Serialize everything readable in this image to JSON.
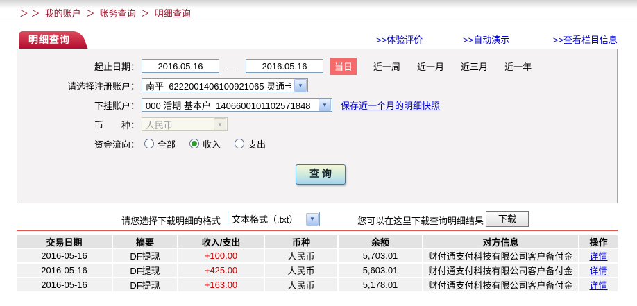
{
  "breadcrumb": {
    "prefix": "＞ ＞",
    "separator": "＞",
    "items": [
      {
        "label": "我的账户"
      },
      {
        "label": "账务查询"
      },
      {
        "label": "明细查询"
      }
    ]
  },
  "header": {
    "tab": "明细查询",
    "links": [
      {
        "prefix": ">>",
        "text": "体验评价"
      },
      {
        "prefix": ">>",
        "text": "自动演示"
      },
      {
        "prefix": ">>",
        "text": "查看栏目信息"
      }
    ]
  },
  "form": {
    "date_label": "起止日期：",
    "date_from": "2016.05.16",
    "date_separator": "—",
    "date_to": "2016.05.16",
    "today_badge": "当日",
    "quick_ranges": [
      {
        "label": "近一周"
      },
      {
        "label": "近一月"
      },
      {
        "label": "近三月"
      },
      {
        "label": "近一年"
      }
    ],
    "register_account_label": "请选择注册账户：",
    "register_account_value": "南平  6222001406100921065 灵通卡",
    "sub_account_label": "下挂账户：",
    "sub_account_value": "000 活期 基本户  1406600101102571848",
    "snapshot_link": "保存近一个月的明细快照",
    "currency_label": "币　　种：",
    "currency_value": "人民币",
    "flow_label": "资金流向：",
    "flow_options": [
      {
        "label": "全部",
        "checked": false
      },
      {
        "label": "收入",
        "checked": true
      },
      {
        "label": "支出",
        "checked": false
      }
    ],
    "query_button": "查 询",
    "dropdown_arrow": "▼"
  },
  "download": {
    "format_label": "请您选择下载明细的格式",
    "format_value": "文本格式（.txt）",
    "hint": "您可以在这里下载查询明细结果",
    "button": "下载"
  },
  "table": {
    "headers": [
      "交易日期",
      "摘要",
      "收入/支出",
      "币种",
      "余额",
      "对方信息",
      "操作"
    ],
    "rows": [
      {
        "date": "2016-05-16",
        "summary": "DF提现",
        "amount": "+100.00",
        "currency": "人民币",
        "balance": "5,703.01",
        "counterparty": "财付通支付科技有限公司客户备付金",
        "action": "详情"
      },
      {
        "date": "2016-05-16",
        "summary": "DF提现",
        "amount": "+425.00",
        "currency": "人民币",
        "balance": "5,603.01",
        "counterparty": "财付通支付科技有限公司客户备付金",
        "action": "详情"
      },
      {
        "date": "2016-05-16",
        "summary": "DF提现",
        "amount": "+163.00",
        "currency": "人民币",
        "balance": "5,178.01",
        "counterparty": "财付通支付科技有限公司客户备付金",
        "action": "详情"
      }
    ]
  },
  "colors": {
    "breadcrumb_red": "#9a1930",
    "tab_red": "#b20e2e",
    "badge_red": "#f56b6b",
    "link_blue": "#0000cc",
    "amount_red": "#cc0000",
    "rule_red": "#e8524c"
  }
}
